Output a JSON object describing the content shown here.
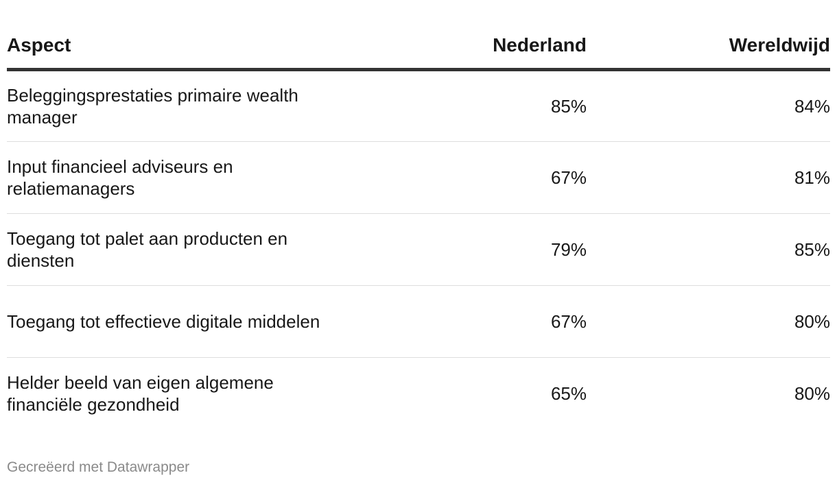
{
  "chart_data": {
    "type": "table",
    "columns": [
      "Aspect",
      "Nederland",
      "Wereldwijd"
    ],
    "rows": [
      {
        "aspect": "Beleggingsprestaties primaire wealth manager",
        "nederland": "85%",
        "wereldwijd": "84%"
      },
      {
        "aspect": "Input financieel adviseurs en relatiemanagers",
        "nederland": "67%",
        "wereldwijd": "81%"
      },
      {
        "aspect": "Toegang tot palet aan producten en diensten",
        "nederland": "79%",
        "wereldwijd": "85%"
      },
      {
        "aspect": "Toegang tot effectieve digitale middelen",
        "nederland": "67%",
        "wereldwijd": "80%"
      },
      {
        "aspect": "Helder beeld van eigen algemene financiële gezondheid",
        "nederland": "65%",
        "wereldwijd": "80%"
      }
    ]
  },
  "footer": {
    "credit": "Gecreëerd met Datawrapper"
  }
}
